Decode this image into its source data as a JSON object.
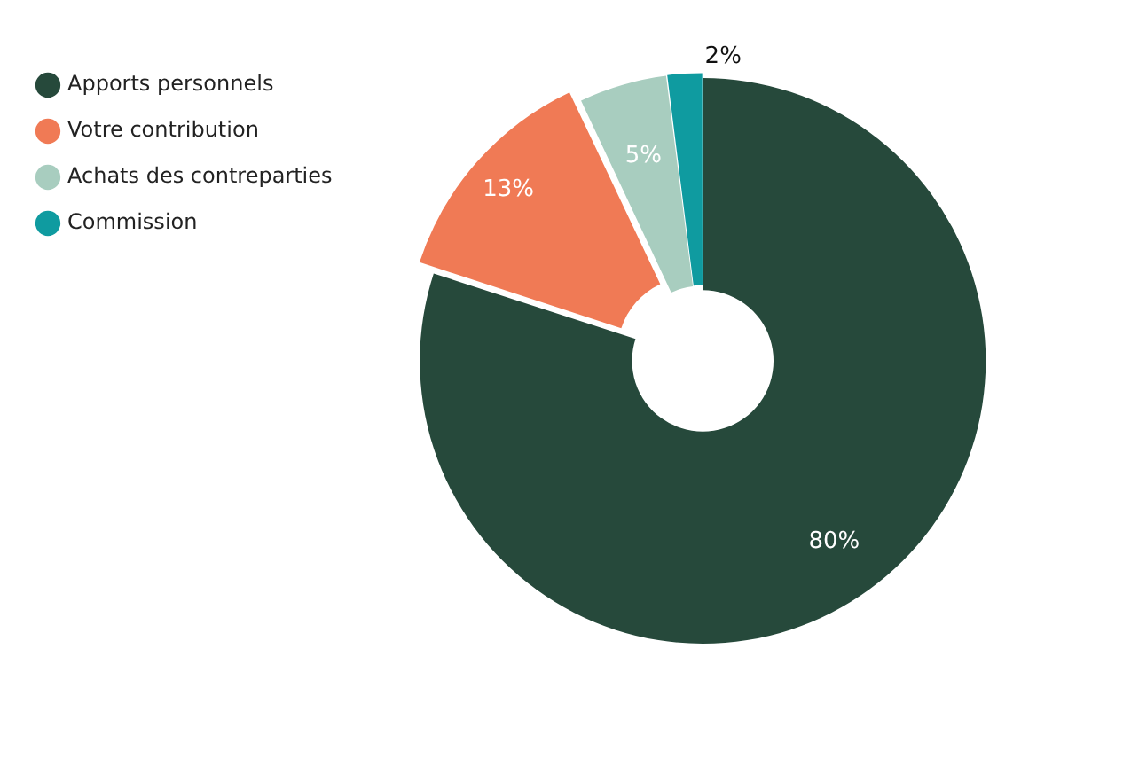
{
  "chart_data": {
    "type": "donut",
    "categories": [
      "Apports personnels",
      "Votre contribution",
      "Achats des contreparties",
      "Commission"
    ],
    "values": [
      80,
      13,
      5,
      2
    ],
    "colors": [
      "#26493b",
      "#f07a55",
      "#a8cdbf",
      "#0f9ba0"
    ],
    "value_labels": [
      "80%",
      "13%",
      "5%",
      "2%"
    ],
    "legend": "top left"
  }
}
